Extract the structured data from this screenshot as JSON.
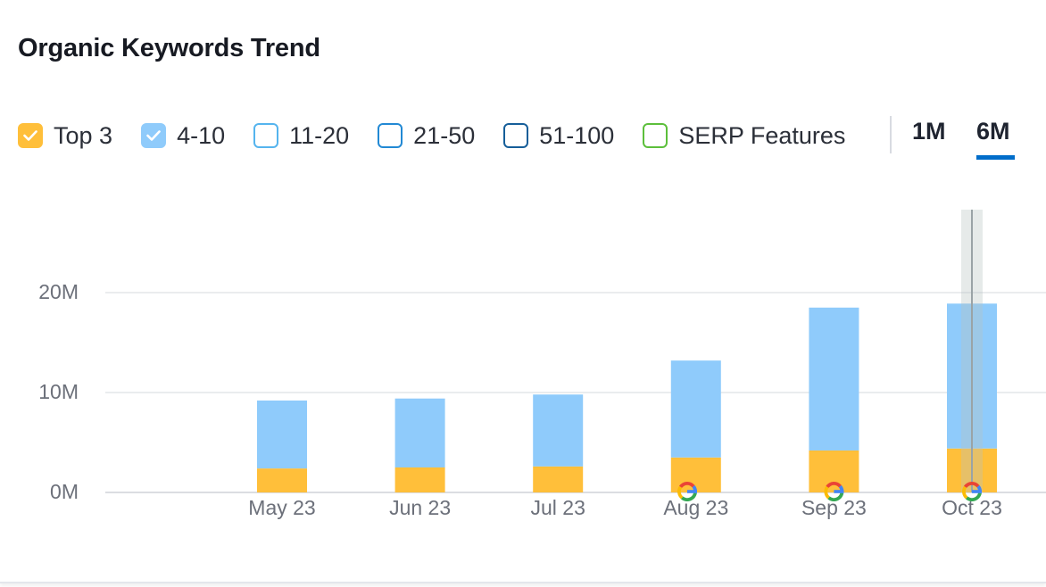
{
  "title": "Organic Keywords Trend",
  "legend": [
    {
      "label": "Top 3",
      "checked": true,
      "color": "#ffbf3a",
      "border": "#ffbf3a"
    },
    {
      "label": "4-10",
      "checked": true,
      "color": "#8fcbfb",
      "border": "#8fcbfb"
    },
    {
      "label": "11-20",
      "checked": false,
      "color": "#ffffff",
      "border": "#55b4ee"
    },
    {
      "label": "21-50",
      "checked": false,
      "color": "#ffffff",
      "border": "#2289d4"
    },
    {
      "label": "51-100",
      "checked": false,
      "color": "#ffffff",
      "border": "#165e99"
    },
    {
      "label": "SERP Features",
      "checked": false,
      "color": "#ffffff",
      "border": "#5cbf3b"
    }
  ],
  "periods": {
    "one_month": "1M",
    "six_months": "6M",
    "active": "6M"
  },
  "chart_data": {
    "type": "bar",
    "stacked": true,
    "title": "Organic Keywords Trend",
    "categories": [
      "May 23",
      "Jun 23",
      "Jul 23",
      "Aug 23",
      "Sep 23",
      "Oct 23"
    ],
    "series": [
      {
        "name": "Top 3",
        "color": "#ffbf3a",
        "values": [
          2.4,
          2.5,
          2.6,
          3.5,
          4.2,
          4.4
        ]
      },
      {
        "name": "4-10",
        "color": "#8fcbfb",
        "values": [
          6.8,
          6.9,
          7.2,
          9.7,
          14.3,
          14.5
        ]
      }
    ],
    "yticks": [
      {
        "value": 0,
        "label": "0M"
      },
      {
        "value": 10,
        "label": "10M"
      },
      {
        "value": 20,
        "label": "20M"
      }
    ],
    "ylim": [
      0,
      28
    ],
    "y_unit": "millions",
    "grid": true,
    "google_markers": [
      "Aug 23",
      "Sep 23",
      "Oct 23"
    ],
    "highlighted_category": "Oct 23",
    "xlabel": "",
    "ylabel": ""
  }
}
